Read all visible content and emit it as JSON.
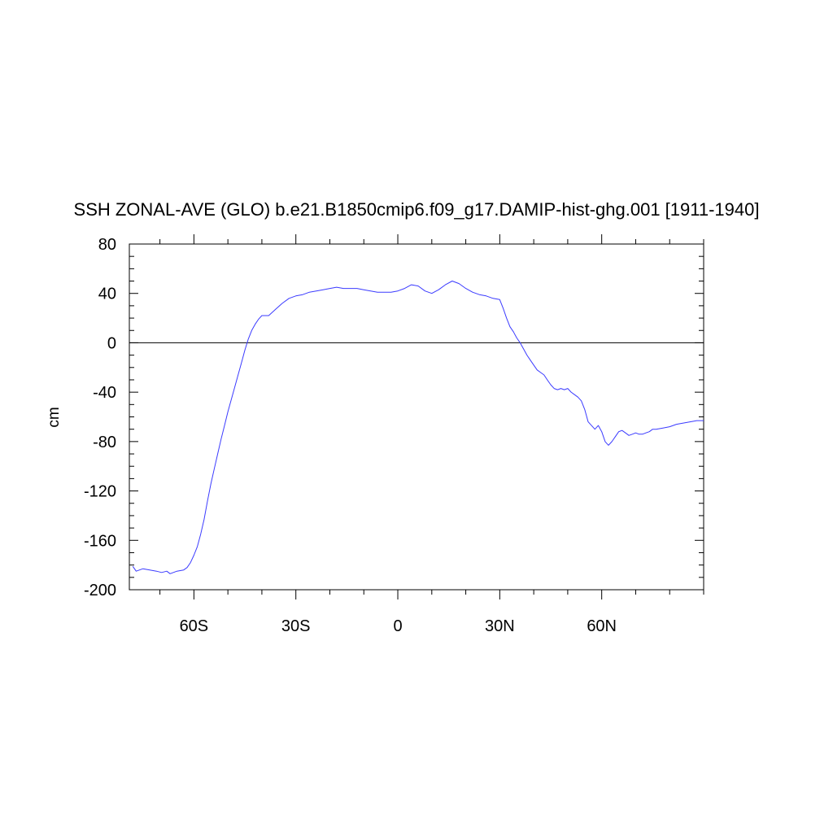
{
  "chart_data": {
    "type": "line",
    "title": "SSH ZONAL-AVE (GLO) b.e21.B1850cmip6.f09_g17.DAMIP-hist-ghg.001 [1911-1940]",
    "xlabel": "",
    "ylabel": "cm",
    "xlim": [
      -79,
      90
    ],
    "ylim": [
      -200,
      80
    ],
    "x_ticks": [
      {
        "value": -60,
        "label": "60S"
      },
      {
        "value": -30,
        "label": "30S"
      },
      {
        "value": 0,
        "label": "0"
      },
      {
        "value": 30,
        "label": "30N"
      },
      {
        "value": 60,
        "label": "60N"
      }
    ],
    "y_ticks": [
      80,
      40,
      0,
      -40,
      -80,
      -120,
      -160,
      -200
    ],
    "zero_line": true,
    "grid": false,
    "colors": {
      "series": "#3b3bff",
      "axis": "#000000"
    },
    "series": [
      {
        "name": "",
        "x": [
          -78,
          -77,
          -75,
          -73,
          -71,
          -69.5,
          -68,
          -67,
          -65,
          -63,
          -62,
          -61,
          -60,
          -59,
          -58,
          -57,
          -56,
          -55,
          -54,
          -53,
          -52,
          -51,
          -50,
          -49,
          -48,
          -47,
          -46,
          -45,
          -44,
          -43,
          -42,
          -41,
          -40,
          -39,
          -38,
          -36,
          -34,
          -32,
          -30,
          -28,
          -26,
          -24,
          -22,
          -20,
          -18,
          -16,
          -14,
          -12,
          -10,
          -8,
          -6,
          -4,
          -2,
          0,
          2,
          4,
          6,
          8,
          10,
          12,
          14,
          16,
          18,
          20,
          22,
          24,
          26,
          28,
          30,
          31,
          32,
          33,
          34,
          35,
          36,
          37,
          38,
          39,
          40,
          41,
          42,
          43,
          44,
          45,
          46,
          47,
          48,
          49,
          50,
          51,
          52,
          53,
          54,
          55,
          56,
          57,
          58,
          59,
          60,
          61,
          62,
          63,
          64,
          65,
          66,
          67,
          68,
          69,
          70,
          71,
          72,
          73,
          74,
          75,
          76,
          78,
          80,
          82,
          84,
          86,
          88,
          90
        ],
        "values": [
          -181,
          -185,
          -183,
          -184,
          -185,
          -186,
          -185,
          -187,
          -185,
          -184,
          -182,
          -178,
          -172,
          -165,
          -155,
          -143,
          -128,
          -114,
          -102,
          -90,
          -78,
          -67,
          -56,
          -46,
          -36,
          -26,
          -16,
          -6,
          3,
          10,
          15,
          19,
          22,
          22,
          22,
          27,
          32,
          36,
          38,
          39,
          41,
          42,
          43,
          44,
          45,
          44,
          44,
          44,
          43,
          42,
          41,
          41,
          41,
          42,
          44,
          47,
          46,
          42,
          40,
          43,
          47,
          50,
          48,
          44,
          41,
          39,
          38,
          36,
          35,
          28,
          20,
          13,
          9,
          4,
          0,
          -5,
          -10,
          -14,
          -18,
          -22,
          -24,
          -26,
          -30,
          -34,
          -37,
          -38,
          -37,
          -38,
          -37,
          -40,
          -42,
          -44,
          -47,
          -54,
          -64,
          -67,
          -70,
          -67,
          -72,
          -80,
          -83,
          -80,
          -76,
          -72,
          -71,
          -73,
          -75,
          -74,
          -73,
          -74,
          -74,
          -73,
          -72,
          -70,
          -70,
          -69,
          -68,
          -66,
          -65,
          -64,
          -63,
          -63
        ]
      }
    ]
  }
}
